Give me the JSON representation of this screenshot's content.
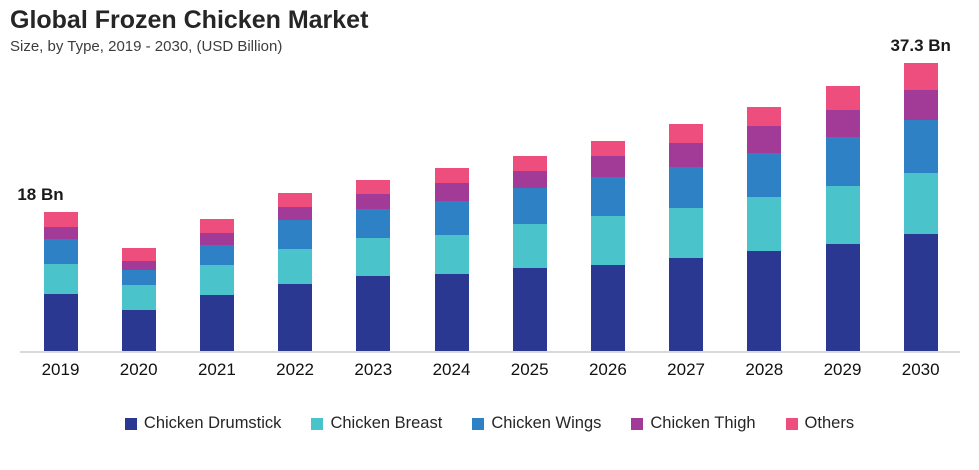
{
  "page": {
    "background": "#ffffff"
  },
  "chart_data": {
    "type": "bar",
    "stacked": true,
    "title": "Global Frozen Chicken Market",
    "subtitle": "Size, by Type,  2019 - 2030, (USD Billion)",
    "unit": "USD Billion",
    "categories": [
      "2019",
      "2020",
      "2021",
      "2022",
      "2023",
      "2024",
      "2025",
      "2026",
      "2027",
      "2028",
      "2029",
      "2030"
    ],
    "series": [
      {
        "name": "Chicken Drumstick",
        "color": "#2a3891",
        "values": [
          7.4,
          5.3,
          7.2,
          8.7,
          9.7,
          10.0,
          10.7,
          11.1,
          12.1,
          13.0,
          13.9,
          15.1
        ]
      },
      {
        "name": "Chicken Breast",
        "color": "#4bc3cb",
        "values": [
          3.9,
          3.3,
          3.9,
          4.5,
          4.9,
          5.0,
          5.7,
          6.4,
          6.4,
          6.9,
          7.5,
          7.9
        ]
      },
      {
        "name": "Chicken Wings",
        "color": "#2e81c4",
        "values": [
          3.2,
          1.9,
          2.7,
          3.8,
          3.8,
          4.4,
          4.7,
          5.1,
          5.4,
          5.8,
          6.3,
          6.9
        ]
      },
      {
        "name": "Chicken Thigh",
        "color": "#a23a97",
        "values": [
          1.6,
          1.1,
          1.5,
          1.6,
          1.9,
          2.4,
          2.2,
          2.6,
          3.1,
          3.5,
          3.5,
          3.9
        ]
      },
      {
        "name": "Others",
        "color": "#ed4e7e",
        "values": [
          1.9,
          1.7,
          1.8,
          1.9,
          1.8,
          1.9,
          2.0,
          2.0,
          2.4,
          2.4,
          3.2,
          3.5
        ]
      }
    ],
    "totals": [
      18.0,
      13.3,
      17.1,
      20.5,
      22.1,
      23.7,
      25.3,
      27.2,
      29.4,
      31.6,
      34.4,
      37.3
    ],
    "annotations": [
      {
        "text": "18 Bn",
        "category": "2019"
      },
      {
        "text": "37.3 Bn",
        "category": "2030"
      }
    ],
    "ylim": [
      0,
      40
    ],
    "grid": false,
    "legend_position": "bottom",
    "axis_line_color": "#d9d9d9"
  }
}
